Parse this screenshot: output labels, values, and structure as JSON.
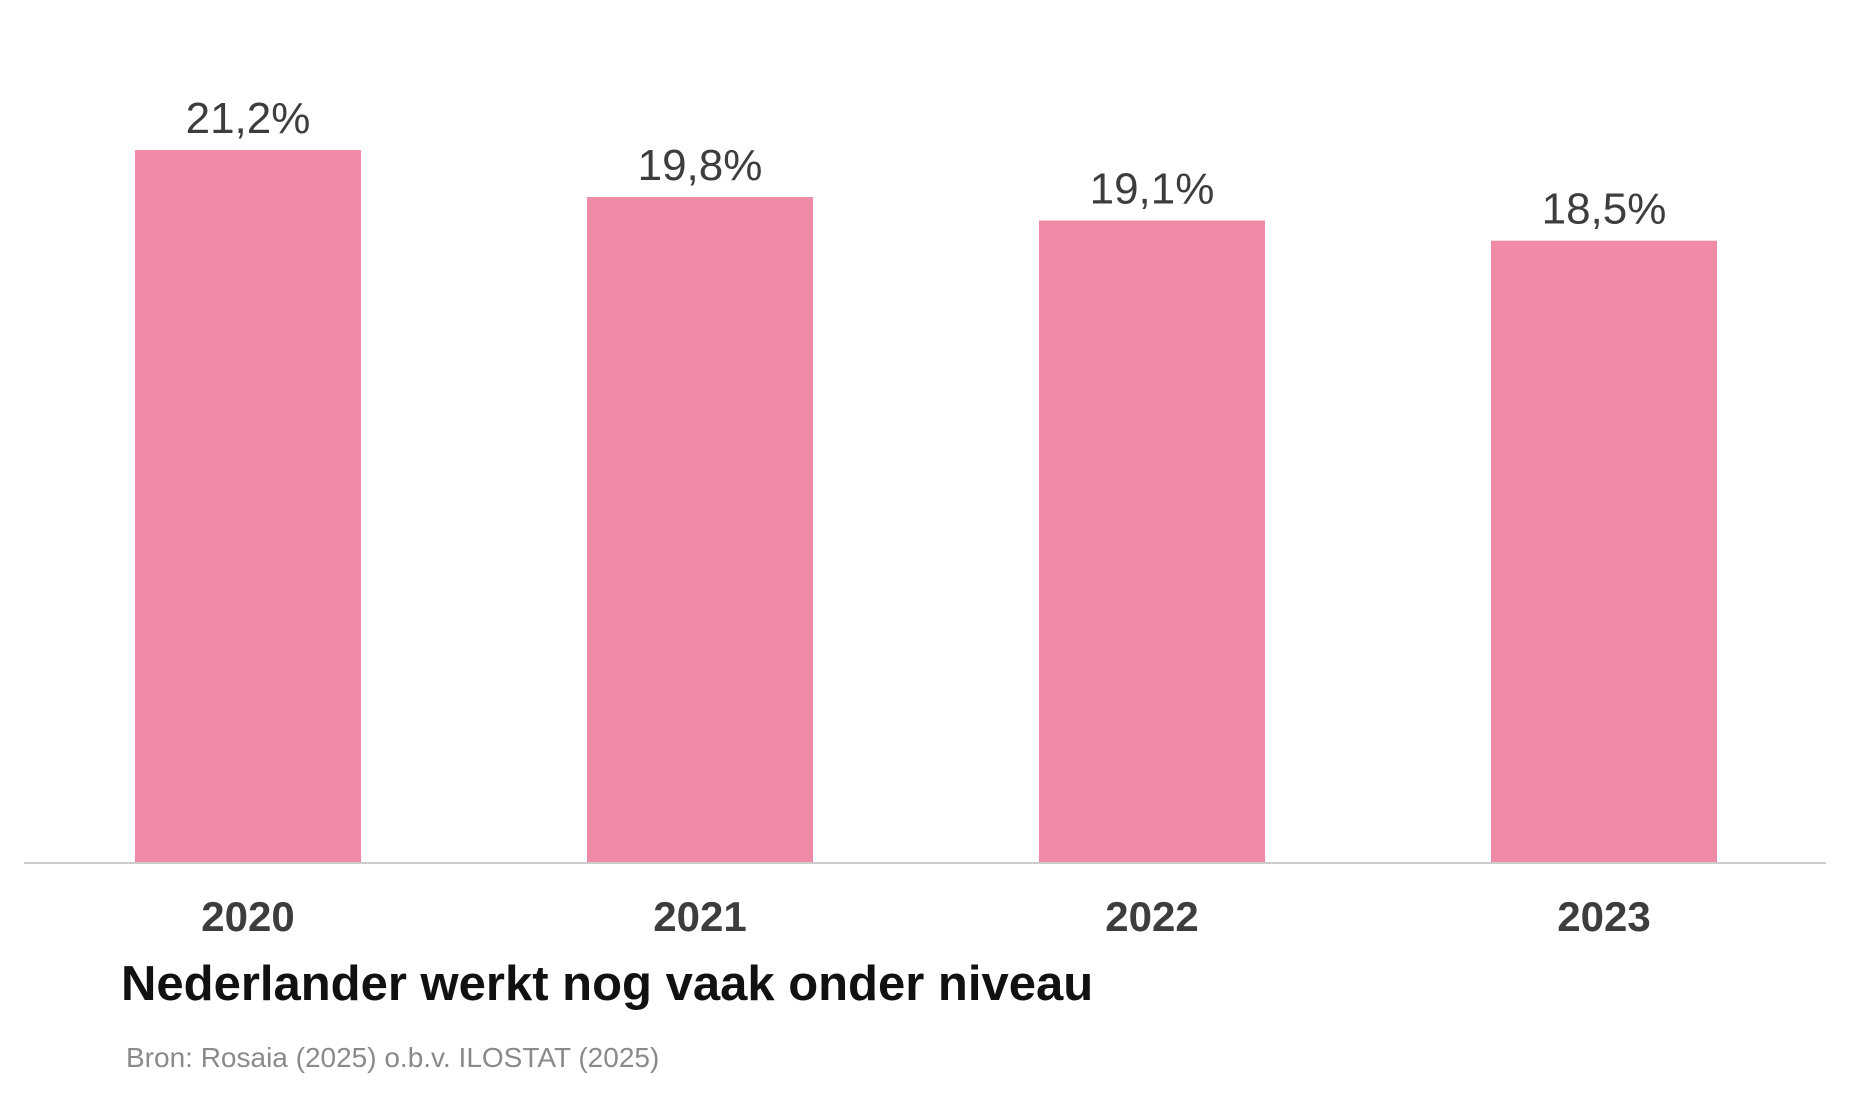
{
  "chart_data": {
    "type": "bar",
    "title": "Nederlander werkt nog vaak onder niveau",
    "source": "Bron: Rosaia (2025) o.b.v. ILOSTAT (2025)",
    "categories": [
      "2020",
      "2021",
      "2022",
      "2023"
    ],
    "values": [
      21.2,
      19.8,
      19.1,
      18.5
    ],
    "value_labels": [
      "21,2%",
      "19,8%",
      "19,1%",
      "18,5%"
    ],
    "ylim": [
      0,
      21.2
    ],
    "grid": false,
    "legend": "none",
    "bar_color": "#ef8ba7",
    "axis_color": "#cccccc"
  }
}
